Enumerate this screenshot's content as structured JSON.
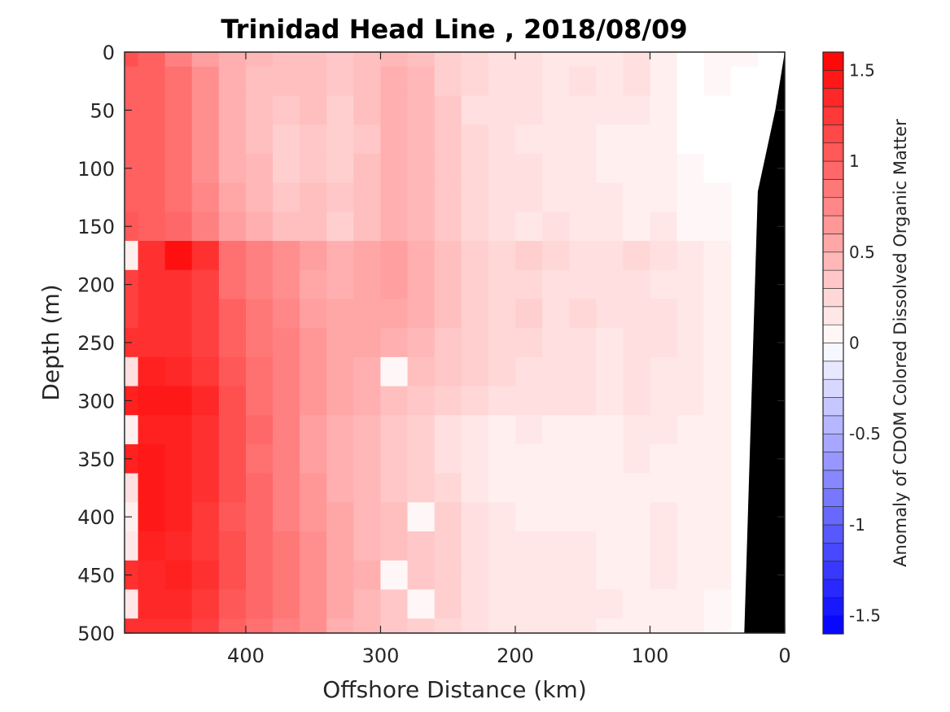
{
  "chart_data": {
    "type": "heatmap",
    "title": "Trinidad Head Line , 2018/08/09",
    "xlabel": "Offshore Distance (km)",
    "ylabel": "Depth (m)",
    "colorbar_label": "Anomaly of CDOM Colored Dissolved Organic Matter",
    "x_reversed": true,
    "y_reversed": true,
    "xlim": [
      490,
      0
    ],
    "ylim": [
      0,
      500
    ],
    "xticks": [
      400,
      300,
      200,
      100,
      0
    ],
    "yticks": [
      0,
      50,
      100,
      150,
      200,
      250,
      300,
      350,
      400,
      450,
      500
    ],
    "clim": [
      -1.6,
      1.6
    ],
    "colorbar_ticks": [
      1.5,
      1,
      0.5,
      0,
      -0.5,
      -1,
      -1.5
    ],
    "colormap": {
      "negative": "#0000ff",
      "zero": "#ffffff",
      "positive": "#ff0000"
    },
    "bathymetry_color": "#000000",
    "x": [
      490,
      470,
      450,
      430,
      410,
      390,
      370,
      350,
      330,
      310,
      290,
      270,
      250,
      230,
      210,
      190,
      170,
      150,
      130,
      110,
      90,
      70,
      50,
      30,
      10
    ],
    "y": [
      0,
      25,
      50,
      75,
      100,
      125,
      150,
      175,
      200,
      225,
      250,
      275,
      300,
      325,
      350,
      375,
      400,
      425,
      450,
      475,
      500
    ],
    "z": [
      [
        1.1,
        1.0,
        0.8,
        0.6,
        0.5,
        0.45,
        0.4,
        0.4,
        0.35,
        0.4,
        0.45,
        0.4,
        0.3,
        0.25,
        0.2,
        0.2,
        0.15,
        0.15,
        0.15,
        0.2,
        0.1,
        0.0,
        0.05,
        0.05,
        null
      ],
      [
        1.0,
        1.0,
        0.9,
        0.7,
        0.5,
        0.4,
        0.4,
        0.4,
        0.35,
        0.4,
        0.5,
        0.45,
        0.3,
        0.25,
        0.2,
        0.2,
        0.15,
        0.2,
        0.15,
        0.2,
        0.1,
        0.0,
        0.05,
        0.0,
        null
      ],
      [
        1.0,
        1.0,
        0.9,
        0.7,
        0.5,
        0.4,
        0.35,
        0.4,
        0.3,
        0.4,
        0.5,
        0.45,
        0.35,
        0.2,
        0.2,
        0.2,
        0.15,
        0.15,
        0.15,
        0.15,
        0.1,
        0.0,
        0.0,
        0.0,
        null
      ],
      [
        1.0,
        1.0,
        0.9,
        0.7,
        0.5,
        0.4,
        0.3,
        0.35,
        0.3,
        0.35,
        0.5,
        0.45,
        0.35,
        0.25,
        0.2,
        0.15,
        0.15,
        0.15,
        0.1,
        0.1,
        0.1,
        0.0,
        0.0,
        0.0,
        null
      ],
      [
        1.0,
        1.0,
        0.9,
        0.7,
        0.5,
        0.45,
        0.3,
        0.35,
        0.3,
        0.4,
        0.5,
        0.45,
        0.35,
        0.25,
        0.2,
        0.2,
        0.15,
        0.15,
        0.1,
        0.1,
        0.1,
        0.05,
        0.0,
        null,
        null
      ],
      [
        1.0,
        1.0,
        0.9,
        0.75,
        0.55,
        0.45,
        0.35,
        0.4,
        0.35,
        0.4,
        0.5,
        0.45,
        0.35,
        0.25,
        0.2,
        0.2,
        0.15,
        0.15,
        0.15,
        0.1,
        0.1,
        0.05,
        0.05,
        null,
        null
      ],
      [
        1.05,
        1.0,
        0.95,
        0.8,
        0.6,
        0.5,
        0.4,
        0.4,
        0.3,
        0.4,
        0.5,
        0.45,
        0.35,
        0.25,
        0.2,
        0.15,
        0.2,
        0.15,
        0.15,
        0.1,
        0.15,
        0.05,
        0.05,
        null,
        null
      ],
      [
        0.1,
        1.3,
        1.5,
        1.3,
        0.9,
        0.8,
        0.7,
        0.6,
        0.5,
        0.55,
        0.6,
        0.5,
        0.4,
        0.3,
        0.25,
        0.3,
        0.25,
        0.2,
        0.2,
        0.25,
        0.2,
        0.15,
        0.1,
        null,
        null
      ],
      [
        1.2,
        1.3,
        1.3,
        1.2,
        0.9,
        0.8,
        0.7,
        0.55,
        0.5,
        0.55,
        0.6,
        0.5,
        0.4,
        0.3,
        0.25,
        0.25,
        0.2,
        0.2,
        0.2,
        0.2,
        0.15,
        0.15,
        0.1,
        null,
        null
      ],
      [
        1.2,
        1.3,
        1.3,
        1.2,
        1.0,
        0.85,
        0.75,
        0.6,
        0.55,
        0.55,
        0.55,
        0.5,
        0.4,
        0.3,
        0.25,
        0.3,
        0.2,
        0.25,
        0.2,
        0.2,
        0.2,
        0.15,
        0.1,
        null,
        null
      ],
      [
        1.3,
        1.3,
        1.3,
        1.2,
        1.0,
        0.85,
        0.8,
        0.65,
        0.55,
        0.55,
        0.5,
        0.45,
        0.35,
        0.3,
        0.25,
        0.25,
        0.2,
        0.2,
        0.15,
        0.2,
        0.2,
        0.15,
        0.1,
        null,
        null
      ],
      [
        0.2,
        1.4,
        1.35,
        1.25,
        1.05,
        0.9,
        0.8,
        0.65,
        0.55,
        0.5,
        0.05,
        0.4,
        0.35,
        0.3,
        0.25,
        0.2,
        0.2,
        0.2,
        0.15,
        0.2,
        0.15,
        0.15,
        0.1,
        null,
        null
      ],
      [
        1.4,
        1.45,
        1.45,
        1.35,
        1.1,
        0.9,
        0.8,
        0.65,
        0.55,
        0.5,
        0.4,
        0.35,
        0.3,
        0.25,
        0.2,
        0.2,
        0.2,
        0.2,
        0.15,
        0.2,
        0.15,
        0.15,
        0.1,
        null,
        null
      ],
      [
        0.1,
        1.4,
        1.4,
        1.3,
        1.1,
        0.95,
        0.8,
        0.6,
        0.5,
        0.45,
        0.35,
        0.3,
        0.2,
        0.15,
        0.1,
        0.15,
        0.1,
        0.1,
        0.1,
        0.15,
        0.15,
        0.1,
        0.1,
        null,
        null
      ],
      [
        1.4,
        1.45,
        1.4,
        1.3,
        1.1,
        0.9,
        0.8,
        0.6,
        0.5,
        0.45,
        0.35,
        0.3,
        0.2,
        0.15,
        0.1,
        0.1,
        0.1,
        0.1,
        0.1,
        0.15,
        0.1,
        0.1,
        0.1,
        null,
        null
      ],
      [
        0.2,
        1.45,
        1.4,
        1.3,
        1.1,
        0.95,
        0.8,
        0.65,
        0.5,
        0.45,
        0.35,
        0.3,
        0.25,
        0.15,
        0.1,
        0.1,
        0.1,
        0.1,
        0.1,
        0.1,
        0.1,
        0.1,
        0.1,
        null,
        null
      ],
      [
        0.1,
        1.45,
        1.4,
        1.25,
        1.05,
        0.95,
        0.8,
        0.65,
        0.55,
        0.45,
        0.4,
        0.05,
        0.3,
        0.2,
        0.15,
        0.1,
        0.1,
        0.1,
        0.1,
        0.1,
        0.15,
        0.1,
        0.1,
        null,
        null
      ],
      [
        0.15,
        1.4,
        1.35,
        1.25,
        1.1,
        0.95,
        0.85,
        0.7,
        0.55,
        0.45,
        0.4,
        0.35,
        0.3,
        0.2,
        0.15,
        0.15,
        0.15,
        0.15,
        0.1,
        0.1,
        0.15,
        0.1,
        0.1,
        null,
        null
      ],
      [
        1.3,
        1.35,
        1.4,
        1.3,
        1.1,
        0.95,
        0.85,
        0.7,
        0.55,
        0.5,
        0.05,
        0.35,
        0.3,
        0.2,
        0.15,
        0.15,
        0.15,
        0.15,
        0.1,
        0.1,
        0.15,
        0.1,
        0.1,
        null,
        null
      ],
      [
        0.15,
        1.35,
        1.35,
        1.25,
        1.05,
        0.95,
        0.85,
        0.7,
        0.55,
        0.45,
        0.35,
        0.05,
        0.3,
        0.2,
        0.15,
        0.15,
        0.15,
        0.15,
        0.15,
        0.1,
        0.1,
        0.1,
        0.05,
        null,
        null
      ],
      [
        1.3,
        1.3,
        1.3,
        1.2,
        1.0,
        0.9,
        0.8,
        0.7,
        0.5,
        0.45,
        0.35,
        0.3,
        0.25,
        0.2,
        0.15,
        0.15,
        0.15,
        0.15,
        0.1,
        0.1,
        0.1,
        0.1,
        0.05,
        null,
        null
      ]
    ],
    "bathymetry": [
      [
        0,
        0
      ],
      [
        0,
        500
      ],
      [
        30,
        500
      ],
      [
        20,
        120
      ],
      [
        7,
        50
      ]
    ]
  }
}
